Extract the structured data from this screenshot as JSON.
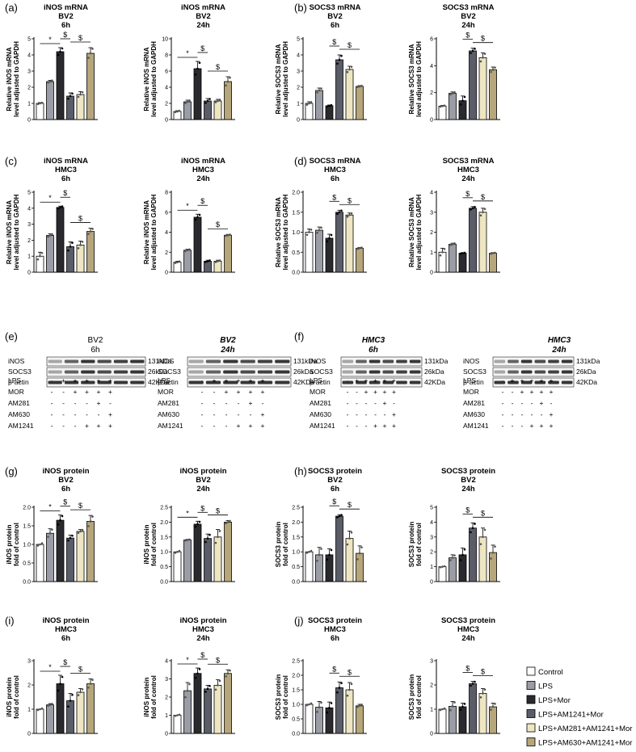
{
  "legend": [
    {
      "label": "Control",
      "color": "#ffffff"
    },
    {
      "label": "LPS",
      "color": "#9a9ca6"
    },
    {
      "label": "LPS+Mor",
      "color": "#2a2a2e"
    },
    {
      "label": "LPS+AM1241+Mor",
      "color": "#5a5d68"
    },
    {
      "label": "LPS+AM281+AM1241+Mor",
      "color": "#eee6c2"
    },
    {
      "label": "LPS+AM630+AM1241+Mor",
      "color": "#b6a67a"
    }
  ],
  "panel_labels": {
    "a": "(a)",
    "b": "(b)",
    "c": "(c)",
    "d": "(d)",
    "e": "(e)",
    "f": "(f)",
    "g": "(g)",
    "h": "(h)",
    "i": "(i)",
    "j": "(j)"
  },
  "chart_data": [
    {
      "id": "a1",
      "type": "bar",
      "title": [
        "iNOS mRNA",
        "BV2",
        "6h"
      ],
      "ylabel": [
        "Relative iNOS mRNA",
        "level adjusted to GAPDH"
      ],
      "ylim": [
        0,
        5
      ],
      "yticks": [
        0,
        1,
        2,
        3,
        4,
        5
      ],
      "values": [
        1.0,
        2.35,
        4.2,
        1.45,
        1.55,
        4.1
      ],
      "errors": [
        0.05,
        0.08,
        0.25,
        0.2,
        0.18,
        0.35
      ],
      "sig": [
        {
          "a": 0,
          "b": 2,
          "t": "*"
        },
        {
          "a": 2,
          "b": 3,
          "t": "$"
        },
        {
          "a": 3,
          "b": 5,
          "t": "$"
        }
      ]
    },
    {
      "id": "a2",
      "type": "bar",
      "title": [
        "iNOS mRNA",
        "BV2",
        "24h"
      ],
      "ylabel": [
        "Relative iNOS mRNA",
        "level adjusted to GAPDH"
      ],
      "ylim": [
        0,
        10
      ],
      "yticks": [
        0,
        2,
        4,
        6,
        8,
        10
      ],
      "values": [
        1.0,
        2.2,
        6.3,
        2.3,
        2.3,
        4.7
      ],
      "errors": [
        0.1,
        0.2,
        0.9,
        0.3,
        0.2,
        0.6
      ],
      "sig": [
        {
          "a": 0,
          "b": 2,
          "t": "*"
        },
        {
          "a": 2,
          "b": 3,
          "t": "$"
        },
        {
          "a": 3,
          "b": 5,
          "t": "$"
        }
      ]
    },
    {
      "id": "b1",
      "type": "bar",
      "title": [
        "SOCS3 mRNA",
        "BV2",
        "6h"
      ],
      "ylabel": [
        "Relative SOCS3 mRNA",
        "level adjusted to GAPDH"
      ],
      "ylim": [
        0,
        5
      ],
      "yticks": [
        0,
        1,
        2,
        3,
        4,
        5
      ],
      "values": [
        1.0,
        1.8,
        0.85,
        3.7,
        3.1,
        2.05
      ],
      "errors": [
        0.1,
        0.15,
        0.05,
        0.3,
        0.2,
        0.05
      ],
      "sig": [
        {
          "a": 2,
          "b": 3,
          "t": "$"
        },
        {
          "a": 3,
          "b": 5,
          "t": "$"
        }
      ]
    },
    {
      "id": "b2",
      "type": "bar",
      "title": [
        "SOCS3 mRNA",
        "BV2",
        "24h"
      ],
      "ylabel": [
        "Relative SOCS3 mRNA",
        "level adjusted to GAPDH"
      ],
      "ylim": [
        0,
        6
      ],
      "yticks": [
        0,
        2,
        4,
        6
      ],
      "values": [
        1.0,
        1.95,
        1.4,
        5.1,
        4.6,
        3.7
      ],
      "errors": [
        0.05,
        0.1,
        0.35,
        0.2,
        0.35,
        0.2
      ],
      "sig": [
        {
          "a": 2,
          "b": 3,
          "t": "$"
        },
        {
          "a": 3,
          "b": 5,
          "t": "$"
        }
      ]
    },
    {
      "id": "c1",
      "type": "bar",
      "title": [
        "iNOS mRNA",
        "HMC3",
        "6h"
      ],
      "ylabel": [
        "Relative iNOS mRNA",
        "level adjusted to GAPDH"
      ],
      "ylim": [
        0,
        5
      ],
      "yticks": [
        0,
        1,
        2,
        3,
        4,
        5
      ],
      "values": [
        1.0,
        2.3,
        4.05,
        1.6,
        1.7,
        2.55
      ],
      "errors": [
        0.25,
        0.1,
        0.08,
        0.3,
        0.25,
        0.2
      ],
      "sig": [
        {
          "a": 0,
          "b": 2,
          "t": "*"
        },
        {
          "a": 2,
          "b": 3,
          "t": "$"
        },
        {
          "a": 3,
          "b": 5,
          "t": "$"
        }
      ]
    },
    {
      "id": "c2",
      "type": "bar",
      "title": [
        "iNOS mRNA",
        "HMC3",
        "24h"
      ],
      "ylabel": [
        "Relative iNOS mRNA",
        "level adjusted to GAPDH"
      ],
      "ylim": [
        0,
        8
      ],
      "yticks": [
        0,
        2,
        4,
        6,
        8
      ],
      "values": [
        1.0,
        2.2,
        5.5,
        1.1,
        1.1,
        3.7
      ],
      "errors": [
        0.1,
        0.1,
        0.3,
        0.1,
        0.1,
        0.08
      ],
      "sig": [
        {
          "a": 0,
          "b": 2,
          "t": "*"
        },
        {
          "a": 2,
          "b": 3,
          "t": "$"
        },
        {
          "a": 3,
          "b": 5,
          "t": "$"
        }
      ]
    },
    {
      "id": "d1",
      "type": "bar",
      "title": [
        "SOCS3 mRNA",
        "HMC3",
        "6h"
      ],
      "ylabel": [
        "Relative SOCS3 mRNA",
        "level adjusted to GAPDH"
      ],
      "ylim": [
        0,
        2.0
      ],
      "yticks": [
        0.0,
        0.5,
        1.0,
        1.5,
        2.0
      ],
      "values": [
        1.0,
        1.05,
        0.85,
        1.5,
        1.43,
        0.6
      ],
      "errors": [
        0.08,
        0.08,
        0.1,
        0.05,
        0.05,
        0.02
      ],
      "sig": [
        {
          "a": 2,
          "b": 3,
          "t": "$"
        },
        {
          "a": 3,
          "b": 5,
          "t": "$"
        }
      ]
    },
    {
      "id": "d2",
      "type": "bar",
      "title": [
        "SOCS3 mRNA",
        "HMC3",
        "24h"
      ],
      "ylabel": [
        "Relative SOCS3 mRNA",
        "level adjusted to GAPDH"
      ],
      "ylim": [
        0,
        4
      ],
      "yticks": [
        0,
        1,
        2,
        3,
        4
      ],
      "values": [
        1.0,
        1.4,
        0.95,
        3.2,
        3.0,
        0.95
      ],
      "errors": [
        0.2,
        0.05,
        0.03,
        0.08,
        0.2,
        0.03
      ],
      "sig": [
        {
          "a": 2,
          "b": 3,
          "t": "$"
        },
        {
          "a": 3,
          "b": 5,
          "t": "$"
        }
      ]
    },
    {
      "id": "g1",
      "type": "bar",
      "title": [
        "iNOS protein",
        "BV2",
        "6h"
      ],
      "ylabel": [
        "iNOS protein",
        "fold of control"
      ],
      "ylim": [
        0,
        2.0
      ],
      "yticks": [
        0.0,
        0.5,
        1.0,
        1.5,
        2.0
      ],
      "values": [
        1.0,
        1.3,
        1.65,
        1.17,
        1.35,
        1.62
      ],
      "errors": [
        0.0,
        0.12,
        0.14,
        0.08,
        0.05,
        0.16
      ],
      "sig": [
        {
          "a": 0,
          "b": 2,
          "t": "*"
        },
        {
          "a": 2,
          "b": 3,
          "t": "$"
        },
        {
          "a": 3,
          "b": 5,
          "t": "$"
        }
      ]
    },
    {
      "id": "g2",
      "type": "bar",
      "title": [
        "iNOS protein",
        "BV2",
        "24h"
      ],
      "ylabel": [
        "iNOS protein",
        "fold of control"
      ],
      "ylim": [
        0,
        2.5
      ],
      "yticks": [
        0.0,
        0.5,
        1.0,
        1.5,
        2.0,
        2.5
      ],
      "values": [
        1.0,
        1.4,
        1.93,
        1.45,
        1.5,
        2.0
      ],
      "errors": [
        0.0,
        0.02,
        0.1,
        0.15,
        0.25,
        0.05
      ],
      "sig": [
        {
          "a": 0,
          "b": 2,
          "t": "*"
        },
        {
          "a": 2,
          "b": 3,
          "t": "$"
        },
        {
          "a": 3,
          "b": 5,
          "t": "$"
        }
      ]
    },
    {
      "id": "h1",
      "type": "bar",
      "title": [
        "SOCS3 protein",
        "BV2",
        "6h"
      ],
      "ylabel": [
        "SOCS3 protein",
        "fold of control"
      ],
      "ylim": [
        0,
        2.5
      ],
      "yticks": [
        0.0,
        0.5,
        1.0,
        1.5,
        2.0,
        2.5
      ],
      "values": [
        1.0,
        0.9,
        0.9,
        2.2,
        1.45,
        0.95
      ],
      "errors": [
        0.0,
        0.25,
        0.2,
        0.05,
        0.25,
        0.25
      ],
      "sig": [
        {
          "a": 2,
          "b": 3,
          "t": "$"
        },
        {
          "a": 3,
          "b": 5,
          "t": "$"
        }
      ]
    },
    {
      "id": "h2",
      "type": "bar",
      "title": [
        "SOCS3 protein",
        "BV2",
        "24h"
      ],
      "ylabel": [
        "SOCS3 protein",
        "fold of control"
      ],
      "ylim": [
        0,
        5
      ],
      "yticks": [
        0,
        1,
        2,
        3,
        4,
        5
      ],
      "values": [
        1.0,
        1.6,
        1.8,
        3.6,
        3.0,
        1.95
      ],
      "errors": [
        0.0,
        0.2,
        0.45,
        0.35,
        0.6,
        0.5
      ],
      "sig": [
        {
          "a": 2,
          "b": 3,
          "t": "$"
        },
        {
          "a": 3,
          "b": 5,
          "t": "$"
        }
      ]
    },
    {
      "id": "i1",
      "type": "bar",
      "title": [
        "iNOS protein",
        "HMC3",
        "6h"
      ],
      "ylabel": [
        "iNOS protein",
        "fold of control"
      ],
      "ylim": [
        0,
        3
      ],
      "yticks": [
        0,
        1,
        2,
        3
      ],
      "values": [
        1.0,
        1.18,
        2.05,
        1.35,
        1.7,
        2.05
      ],
      "errors": [
        0.0,
        0.05,
        0.35,
        0.3,
        0.15,
        0.2
      ],
      "sig": [
        {
          "a": 0,
          "b": 2,
          "t": "*"
        },
        {
          "a": 2,
          "b": 3,
          "t": "$"
        },
        {
          "a": 3,
          "b": 5,
          "t": "$"
        }
      ]
    },
    {
      "id": "i2",
      "type": "bar",
      "title": [
        "iNOS protein",
        "HMC3",
        "24h"
      ],
      "ylabel": [
        "iNOS protein",
        "fold of control"
      ],
      "ylim": [
        0,
        4
      ],
      "yticks": [
        0,
        1,
        2,
        3,
        4
      ],
      "values": [
        1.0,
        2.35,
        3.3,
        2.45,
        2.65,
        3.3
      ],
      "errors": [
        0.0,
        0.45,
        0.3,
        0.2,
        0.3,
        0.2
      ],
      "sig": [
        {
          "a": 0,
          "b": 2,
          "t": "*"
        },
        {
          "a": 2,
          "b": 3,
          "t": "$"
        },
        {
          "a": 3,
          "b": 5,
          "t": "$"
        }
      ]
    },
    {
      "id": "j1",
      "type": "bar",
      "title": [
        "SOCS3 protein",
        "HMC3",
        "6h"
      ],
      "ylabel": [
        "SOCS3 protein",
        "fold of control"
      ],
      "ylim": [
        0,
        2.5
      ],
      "yticks": [
        0.0,
        0.5,
        1.0,
        1.5,
        2.0,
        2.5
      ],
      "values": [
        1.0,
        0.9,
        0.88,
        1.57,
        1.5,
        0.95
      ],
      "errors": [
        0.0,
        0.2,
        0.2,
        0.2,
        0.25,
        0.05
      ],
      "sig": [
        {
          "a": 2,
          "b": 3,
          "t": "$"
        },
        {
          "a": 3,
          "b": 5,
          "t": "$"
        }
      ]
    },
    {
      "id": "j2",
      "type": "bar",
      "title": [
        "SOCS3 protein",
        "HMC3",
        "24h"
      ],
      "ylabel": [
        "SOCS3 protein",
        "fold of control"
      ],
      "ylim": [
        0,
        3
      ],
      "yticks": [
        0,
        1,
        2,
        3
      ],
      "values": [
        1.0,
        1.12,
        1.1,
        2.05,
        1.65,
        1.1
      ],
      "errors": [
        0.0,
        0.2,
        0.15,
        0.1,
        0.2,
        0.15
      ],
      "sig": [
        {
          "a": 2,
          "b": 3,
          "t": "$"
        },
        {
          "a": 3,
          "b": 5,
          "t": "$"
        }
      ]
    }
  ],
  "blots": [
    {
      "id": "e1",
      "title": "BV2",
      "subtitle": "6h",
      "italic": false,
      "bands": [
        {
          "label": "iNOS",
          "size": "131kDa"
        },
        {
          "label": "SOCS3",
          "size": "26kDa"
        },
        {
          "label": "β-actin",
          "size": "42KDa"
        }
      ],
      "rows": [
        {
          "label": "LPS",
          "signs": [
            "-",
            "+",
            "+",
            "+",
            "+",
            "+"
          ]
        },
        {
          "label": "MOR",
          "signs": [
            "-",
            "-",
            "+",
            "+",
            "+",
            "+"
          ]
        },
        {
          "label": "AM281",
          "signs": [
            "-",
            "-",
            "-",
            "-",
            "+",
            "-"
          ]
        },
        {
          "label": "AM630",
          "signs": [
            "-",
            "-",
            "-",
            "-",
            "-",
            "+"
          ]
        },
        {
          "label": "AM1241",
          "signs": [
            "-",
            "-",
            "-",
            "+",
            "+",
            "+"
          ]
        }
      ]
    },
    {
      "id": "e2",
      "title": "BV2",
      "subtitle": "24h",
      "italic": true,
      "bands": [
        {
          "label": "iNOS",
          "size": "131kDa"
        },
        {
          "label": "SOCS3",
          "size": "26kDa"
        },
        {
          "label": "β-actin",
          "size": "42KDa"
        }
      ],
      "rows": [
        {
          "label": "LPS",
          "signs": [
            "-",
            "+",
            "+",
            "+",
            "+",
            "+"
          ]
        },
        {
          "label": "MOR",
          "signs": [
            "-",
            "-",
            "+",
            "+",
            "+",
            "+"
          ]
        },
        {
          "label": "AM281",
          "signs": [
            "-",
            "-",
            "-",
            "-",
            "+",
            "-"
          ]
        },
        {
          "label": "AM630",
          "signs": [
            "-",
            "-",
            "-",
            "-",
            "-",
            "+"
          ]
        },
        {
          "label": "AM1241",
          "signs": [
            "-",
            "-",
            "-",
            "+",
            "+",
            "+"
          ]
        }
      ]
    },
    {
      "id": "f1",
      "title": "HMC3",
      "subtitle": "6h",
      "italic": true,
      "bands": [
        {
          "label": "iNOS",
          "size": "131kDa"
        },
        {
          "label": "SOCS3",
          "size": "26kDa"
        },
        {
          "label": "β-actin",
          "size": "42KDa"
        }
      ],
      "rows": [
        {
          "label": "LPS",
          "signs": [
            "-",
            "+",
            "+",
            "+",
            "+",
            "+"
          ]
        },
        {
          "label": "MOR",
          "signs": [
            "-",
            "-",
            "+",
            "+",
            "+",
            "+"
          ]
        },
        {
          "label": "AM281",
          "signs": [
            "-",
            "-",
            "-",
            "-",
            "+",
            "-"
          ]
        },
        {
          "label": "AM630",
          "signs": [
            "-",
            "-",
            "-",
            "-",
            "-",
            "+"
          ]
        },
        {
          "label": "AM1241",
          "signs": [
            "-",
            "-",
            "-",
            "+",
            "+",
            "+"
          ]
        }
      ]
    },
    {
      "id": "f2",
      "title": "HMC3",
      "subtitle": "24h",
      "italic": true,
      "bands": [
        {
          "label": "iNOS",
          "size": "131kDa"
        },
        {
          "label": "SOCS3",
          "size": "26kDa"
        },
        {
          "label": "β-actin",
          "size": "42KDa"
        }
      ],
      "rows": [
        {
          "label": "LPS",
          "signs": [
            "-",
            "+",
            "+",
            "+",
            "+",
            "+"
          ]
        },
        {
          "label": "MOR",
          "signs": [
            "-",
            "-",
            "+",
            "+",
            "+",
            "+"
          ]
        },
        {
          "label": "AM281",
          "signs": [
            "-",
            "-",
            "-",
            "-",
            "+",
            "-"
          ]
        },
        {
          "label": "AM630",
          "signs": [
            "-",
            "-",
            "-",
            "-",
            "-",
            "+"
          ]
        },
        {
          "label": "AM1241",
          "signs": [
            "-",
            "-",
            "-",
            "+",
            "+",
            "+"
          ]
        }
      ]
    }
  ]
}
